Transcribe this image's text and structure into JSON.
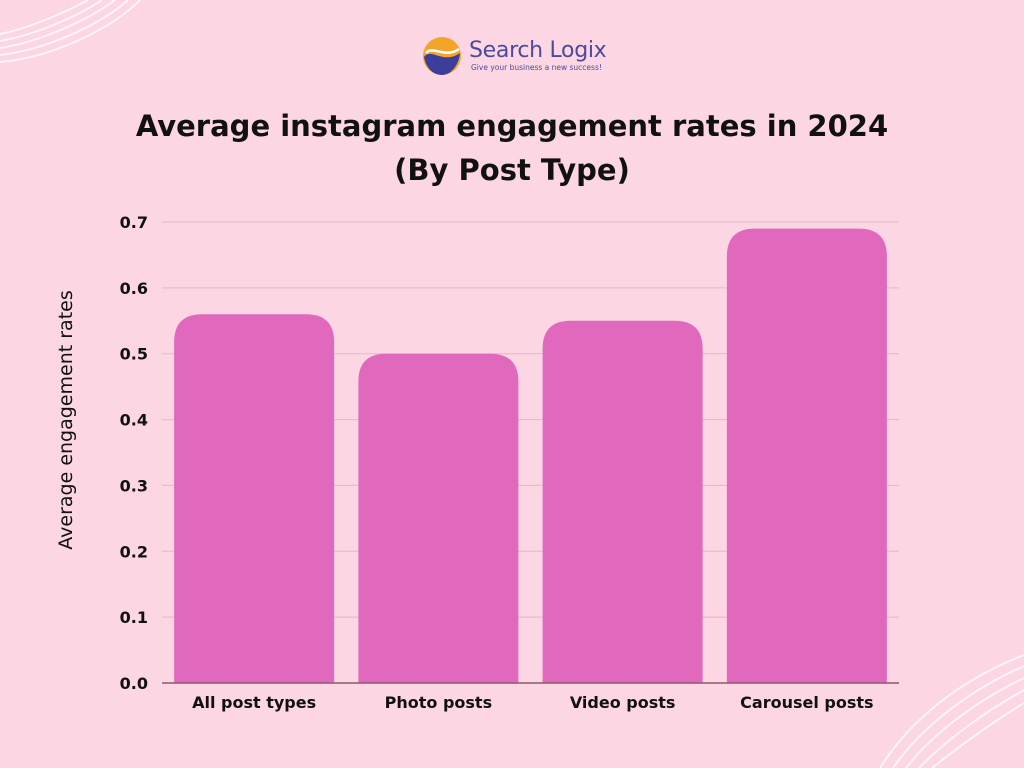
{
  "brand": {
    "name": "Search Logix",
    "tagline": "Give your business a new success!",
    "logo_icon": "swirl-logo-icon",
    "colors": {
      "orange": "#f2a52a",
      "blue": "#3d3d9b"
    }
  },
  "title_line1": "Average instagram engagement rates in 2024",
  "title_line2": "(By Post Type)",
  "colors": {
    "background": "#fcd6e2",
    "bar": "#e069be",
    "grid": "#e6b7c8",
    "axis": "#8a5a6c"
  },
  "chart_data": {
    "type": "bar",
    "title": "Average instagram engagement rates in 2024 (By Post Type)",
    "xlabel": "",
    "ylabel": "Average engagement rates",
    "categories": [
      "All post types",
      "Photo posts",
      "Video posts",
      "Carousel posts"
    ],
    "values": [
      0.56,
      0.5,
      0.55,
      0.69
    ],
    "ylim": [
      0,
      0.7
    ],
    "yticks": [
      "0.0",
      "0.1",
      "0.2",
      "0.3",
      "0.4",
      "0.5",
      "0.6",
      "0.7"
    ],
    "grid": true,
    "legend": "none"
  }
}
